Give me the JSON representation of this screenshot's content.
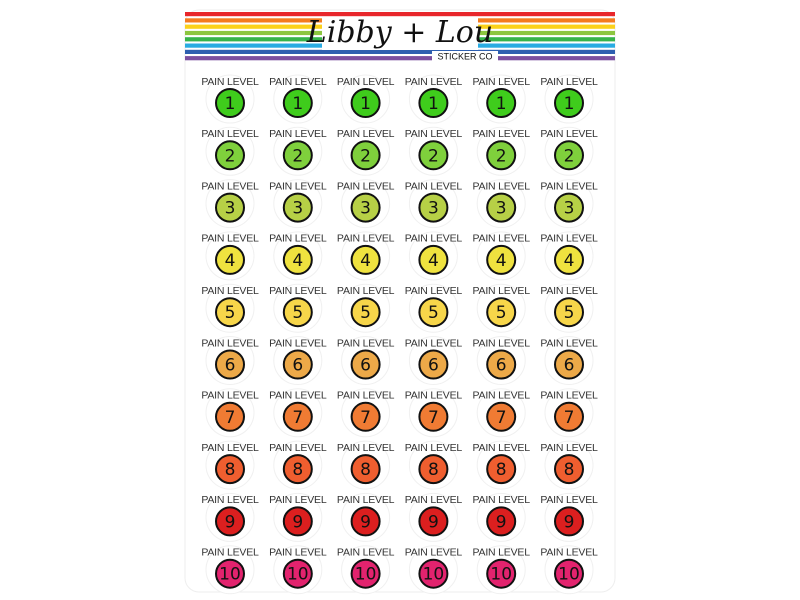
{
  "header": {
    "title": "Libby + Lou",
    "subtitle": "STICKER CO"
  },
  "rows": [
    {
      "color": "#3fcc1c",
      "stickers": [
        {
          "label": "PAIN LEVEL",
          "number": 1
        },
        {
          "label": "PAIN LEVEL",
          "number": 1
        },
        {
          "label": "PAIN LEVEL",
          "number": 1
        },
        {
          "label": "PAIN LEVEL",
          "number": 1
        },
        {
          "label": "PAIN LEVEL",
          "number": 1
        },
        {
          "label": "PAIN LEVEL",
          "number": 1
        }
      ]
    },
    {
      "color": "#7fd03c",
      "stickers": [
        {
          "label": "PAIN LEVEL",
          "number": 2
        },
        {
          "label": "PAIN LEVEL",
          "number": 2
        },
        {
          "label": "PAIN LEVEL",
          "number": 2
        },
        {
          "label": "PAIN LEVEL",
          "number": 2
        },
        {
          "label": "PAIN LEVEL",
          "number": 2
        },
        {
          "label": "PAIN LEVEL",
          "number": 2
        }
      ]
    },
    {
      "color": "#b7d046",
      "stickers": [
        {
          "label": "PAIN LEVEL",
          "number": 3
        },
        {
          "label": "PAIN LEVEL",
          "number": 3
        },
        {
          "label": "PAIN LEVEL",
          "number": 3
        },
        {
          "label": "PAIN LEVEL",
          "number": 3
        },
        {
          "label": "PAIN LEVEL",
          "number": 3
        },
        {
          "label": "PAIN LEVEL",
          "number": 3
        }
      ]
    },
    {
      "color": "#efe23f",
      "stickers": [
        {
          "label": "PAIN LEVEL",
          "number": 4
        },
        {
          "label": "PAIN LEVEL",
          "number": 4
        },
        {
          "label": "PAIN LEVEL",
          "number": 4
        },
        {
          "label": "PAIN LEVEL",
          "number": 4
        },
        {
          "label": "PAIN LEVEL",
          "number": 4
        },
        {
          "label": "PAIN LEVEL",
          "number": 4
        }
      ]
    },
    {
      "color": "#f7d64a",
      "stickers": [
        {
          "label": "PAIN LEVEL",
          "number": 5
        },
        {
          "label": "PAIN LEVEL",
          "number": 5
        },
        {
          "label": "PAIN LEVEL",
          "number": 5
        },
        {
          "label": "PAIN LEVEL",
          "number": 5
        },
        {
          "label": "PAIN LEVEL",
          "number": 5
        },
        {
          "label": "PAIN LEVEL",
          "number": 5
        }
      ]
    },
    {
      "color": "#eda948",
      "stickers": [
        {
          "label": "PAIN LEVEL",
          "number": 6
        },
        {
          "label": "PAIN LEVEL",
          "number": 6
        },
        {
          "label": "PAIN LEVEL",
          "number": 6
        },
        {
          "label": "PAIN LEVEL",
          "number": 6
        },
        {
          "label": "PAIN LEVEL",
          "number": 6
        },
        {
          "label": "PAIN LEVEL",
          "number": 6
        }
      ]
    },
    {
      "color": "#f07b33",
      "stickers": [
        {
          "label": "PAIN LEVEL",
          "number": 7
        },
        {
          "label": "PAIN LEVEL",
          "number": 7
        },
        {
          "label": "PAIN LEVEL",
          "number": 7
        },
        {
          "label": "PAIN LEVEL",
          "number": 7
        },
        {
          "label": "PAIN LEVEL",
          "number": 7
        },
        {
          "label": "PAIN LEVEL",
          "number": 7
        }
      ]
    },
    {
      "color": "#ef5e2f",
      "stickers": [
        {
          "label": "PAIN LEVEL",
          "number": 8
        },
        {
          "label": "PAIN LEVEL",
          "number": 8
        },
        {
          "label": "PAIN LEVEL",
          "number": 8
        },
        {
          "label": "PAIN LEVEL",
          "number": 8
        },
        {
          "label": "PAIN LEVEL",
          "number": 8
        },
        {
          "label": "PAIN LEVEL",
          "number": 8
        }
      ]
    },
    {
      "color": "#dc1f1f",
      "stickers": [
        {
          "label": "PAIN LEVEL",
          "number": 9
        },
        {
          "label": "PAIN LEVEL",
          "number": 9
        },
        {
          "label": "PAIN LEVEL",
          "number": 9
        },
        {
          "label": "PAIN LEVEL",
          "number": 9
        },
        {
          "label": "PAIN LEVEL",
          "number": 9
        },
        {
          "label": "PAIN LEVEL",
          "number": 9
        }
      ]
    },
    {
      "color": "#e2236e",
      "stickers": [
        {
          "label": "PAIN LEVEL",
          "number": 10
        },
        {
          "label": "PAIN LEVEL",
          "number": 10
        },
        {
          "label": "PAIN LEVEL",
          "number": 10
        },
        {
          "label": "PAIN LEVEL",
          "number": 10
        },
        {
          "label": "PAIN LEVEL",
          "number": 10
        },
        {
          "label": "PAIN LEVEL",
          "number": 10
        }
      ]
    }
  ]
}
